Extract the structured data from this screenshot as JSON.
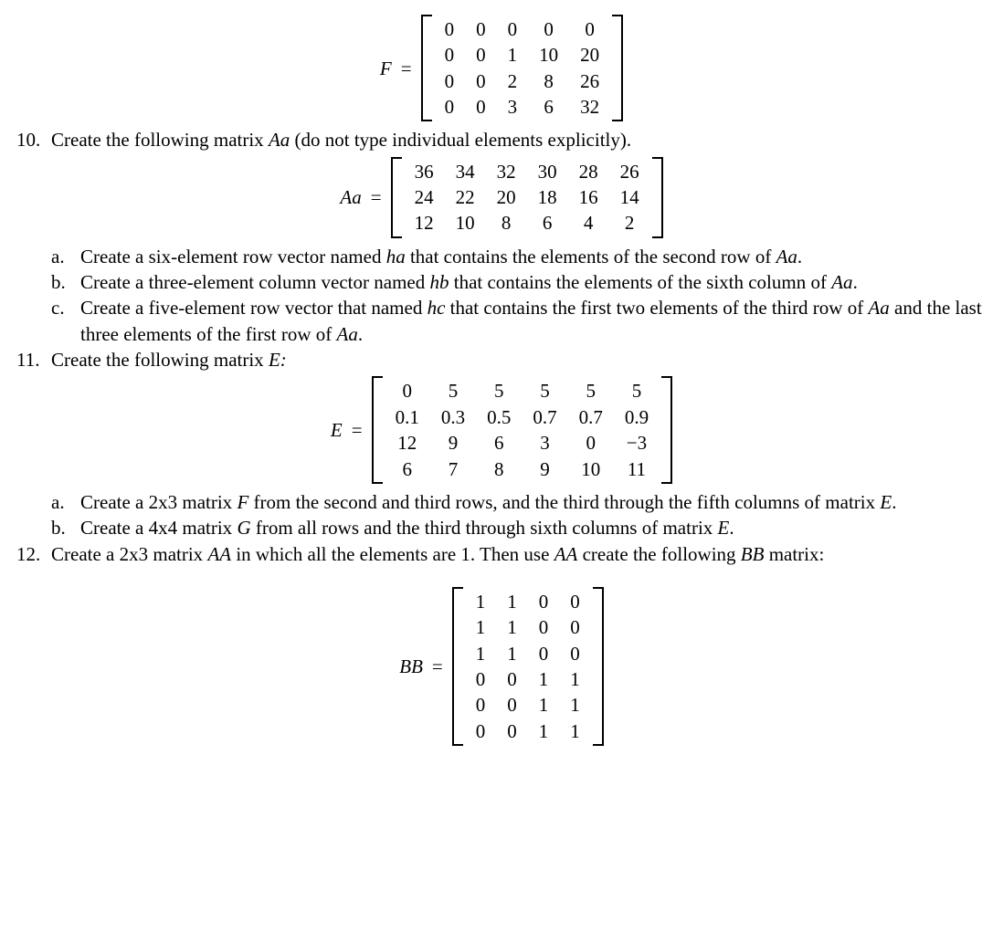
{
  "matrixF": {
    "label": "F",
    "rows": [
      [
        "0",
        "0",
        "0",
        "0",
        "0"
      ],
      [
        "0",
        "0",
        "1",
        "10",
        "20"
      ],
      [
        "0",
        "0",
        "2",
        "8",
        "26"
      ],
      [
        "0",
        "0",
        "3",
        "6",
        "32"
      ]
    ]
  },
  "q10": {
    "num": "10.",
    "text_before": "Create the following matrix ",
    "var": "Aa",
    "text_after": " (do not type individual elements explicitly)."
  },
  "matrixAa": {
    "label": "Aa",
    "rows": [
      [
        "36",
        "34",
        "32",
        "30",
        "28",
        "26"
      ],
      [
        "24",
        "22",
        "20",
        "18",
        "16",
        "14"
      ],
      [
        "12",
        "10",
        "8",
        "6",
        "4",
        "2"
      ]
    ]
  },
  "q10a": {
    "letter": "a.",
    "t1": "Create a six-element row vector named ",
    "v1": "ha",
    "t2": " that contains the elements of the second row of ",
    "v2": "Aa",
    "t3": "."
  },
  "q10b": {
    "letter": "b.",
    "t1": "Create a three-element column vector named ",
    "v1": "hb",
    "t2": " that contains the elements of the sixth column of ",
    "v2": "Aa",
    "t3": "."
  },
  "q10c": {
    "letter": "c.",
    "t1": "Create a five-element row vector that named ",
    "v1": "hc",
    "t2": " that contains the first two elements of the third row of ",
    "v2": "Aa",
    "t3": " and the last three elements of the first row of ",
    "v3": "Aa",
    "t4": "."
  },
  "q11": {
    "num": "11.",
    "t1": "Create the following matrix ",
    "v1": "E:"
  },
  "matrixE": {
    "label": "E",
    "rows": [
      [
        "0",
        "5",
        "5",
        "5",
        "5",
        "5"
      ],
      [
        "0.1",
        "0.3",
        "0.5",
        "0.7",
        "0.7",
        "0.9"
      ],
      [
        "12",
        "9",
        "6",
        "3",
        "0",
        "−3"
      ],
      [
        "6",
        "7",
        "8",
        "9",
        "10",
        "11"
      ]
    ]
  },
  "q11a": {
    "letter": "a.",
    "t1": "Create a 2x3 matrix ",
    "v1": "F",
    "t2": " from the second and third rows, and the third through the fifth columns of matrix ",
    "v2": "E",
    "t3": "."
  },
  "q11b": {
    "letter": "b.",
    "t1": "Create a 4x4 matrix ",
    "v1": "G",
    "t2": " from all rows and the third through sixth columns of matrix ",
    "v2": "E",
    "t3": "."
  },
  "q12": {
    "num": "12.",
    "t1": "Create a 2x3 matrix ",
    "v1": "AA",
    "t2": " in which all the elements are 1. Then use ",
    "v2": "AA",
    "t3": " create the following ",
    "v3": "BB",
    "t4": " matrix:"
  },
  "matrixBB": {
    "label": "BB",
    "rows": [
      [
        "1",
        "1",
        "0",
        "0"
      ],
      [
        "1",
        "1",
        "0",
        "0"
      ],
      [
        "1",
        "1",
        "0",
        "0"
      ],
      [
        "0",
        "0",
        "1",
        "1"
      ],
      [
        "0",
        "0",
        "1",
        "1"
      ],
      [
        "0",
        "0",
        "1",
        "1"
      ]
    ]
  }
}
